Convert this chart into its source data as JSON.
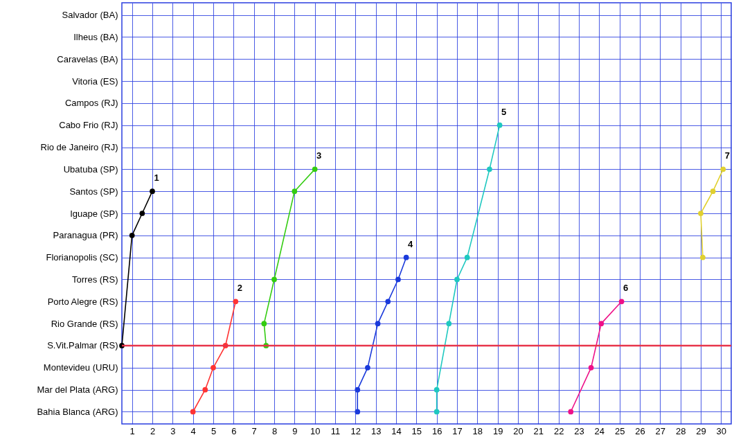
{
  "chart_data": {
    "type": "line",
    "orientation": "horizontal",
    "categories": [
      "Salvador (BA)",
      "Ilheus (BA)",
      "Caravelas (BA)",
      "Vitoria (ES)",
      "Campos (RJ)",
      "Cabo Frio (RJ)",
      "Rio de Janeiro (RJ)",
      "Ubatuba (SP)",
      "Santos (SP)",
      "Iguape (SP)",
      "Paranagua (PR)",
      "Florianopolis (SC)",
      "Torres (RS)",
      "Porto Alegre (RS)",
      "Rio Grande (RS)",
      "S.Vit.Palmar (RS)",
      "Montevideu (URU)",
      "Mar del Plata (ARG)",
      "Bahia Blanca (ARG)"
    ],
    "series": [
      {
        "color": "#000000",
        "values": [
          null,
          null,
          null,
          null,
          null,
          null,
          null,
          null,
          2.0,
          1.5,
          1.0,
          null,
          null,
          null,
          null,
          0.5,
          null,
          null,
          null
        ]
      },
      {
        "color": "#ff3333",
        "values": [
          null,
          null,
          null,
          null,
          null,
          null,
          null,
          null,
          null,
          null,
          null,
          null,
          null,
          6.1,
          null,
          5.6,
          5.0,
          4.6,
          4.0
        ]
      },
      {
        "color": "#33cc11",
        "values": [
          null,
          null,
          null,
          null,
          null,
          null,
          null,
          10.0,
          9.0,
          null,
          null,
          null,
          8.0,
          null,
          7.5,
          7.6,
          null,
          null,
          null
        ]
      },
      {
        "color": "#1a3adb",
        "values": [
          null,
          null,
          null,
          null,
          null,
          null,
          null,
          null,
          null,
          null,
          null,
          14.5,
          14.1,
          13.6,
          13.1,
          null,
          12.6,
          12.1,
          12.1
        ]
      },
      {
        "color": "#1ec8c0",
        "values": [
          null,
          null,
          null,
          null,
          null,
          19.1,
          null,
          18.6,
          null,
          null,
          null,
          17.5,
          17.0,
          null,
          16.6,
          null,
          null,
          16.0,
          16.0
        ]
      },
      {
        "color": "#ee1188",
        "values": [
          null,
          null,
          null,
          null,
          null,
          null,
          null,
          null,
          null,
          null,
          null,
          null,
          null,
          25.1,
          24.1,
          null,
          23.6,
          null,
          22.6
        ]
      },
      {
        "color": "#e0d030",
        "values": [
          null,
          null,
          null,
          null,
          null,
          null,
          null,
          30.1,
          29.6,
          29.0,
          null,
          29.1,
          null,
          null,
          null,
          null,
          null,
          null,
          null
        ]
      }
    ],
    "xlim": [
      0.5,
      30.5
    ],
    "xticks": [
      1,
      2,
      3,
      4,
      5,
      6,
      7,
      8,
      9,
      10,
      11,
      12,
      13,
      14,
      15,
      16,
      17,
      18,
      19,
      20,
      21,
      22,
      23,
      24,
      25,
      26,
      27,
      28,
      29,
      30
    ],
    "grid": true,
    "marker": "circle",
    "ref_lines": [
      {
        "axis": "y",
        "value": "S.Vit.Palmar (RS)",
        "color": "#e8344a"
      }
    ],
    "annotations": [
      {
        "text": "1",
        "x": 2.0,
        "y": "Santos (SP)"
      },
      {
        "text": "2",
        "x": 6.1,
        "y": "Porto Alegre (RS)"
      },
      {
        "text": "3",
        "x": 10.0,
        "y": "Ubatuba (SP)"
      },
      {
        "text": "4",
        "x": 14.5,
        "y": "Florianopolis (SC)"
      },
      {
        "text": "5",
        "x": 19.1,
        "y": "Cabo Frio (RJ)"
      },
      {
        "text": "6",
        "x": 25.1,
        "y": "Porto Alegre (RS)"
      },
      {
        "text": "7",
        "x": 30.1,
        "y": "Ubatuba (SP)"
      }
    ]
  }
}
